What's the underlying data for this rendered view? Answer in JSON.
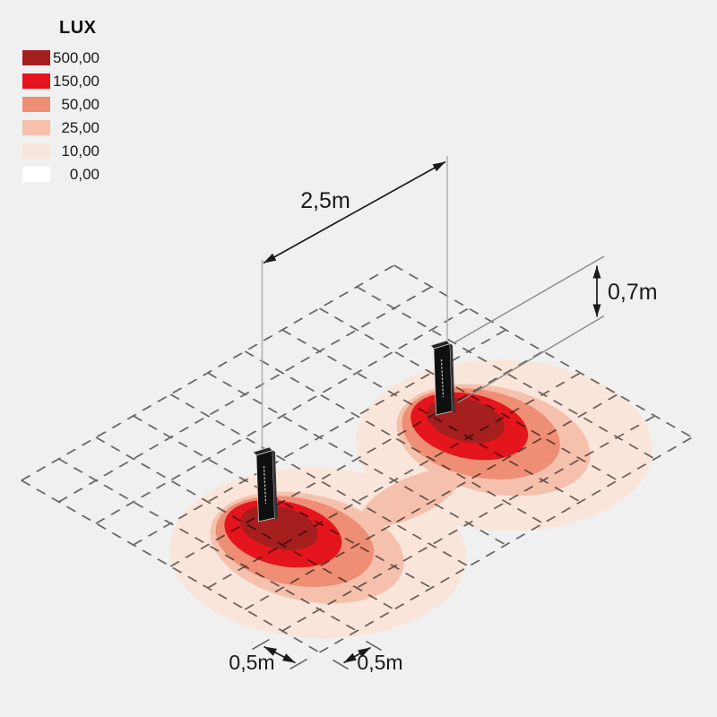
{
  "legend": {
    "title": "LUX",
    "items": [
      {
        "label": "500,00",
        "color": "#A51F1F"
      },
      {
        "label": "150,00",
        "color": "#E4151D"
      },
      {
        "label": "50,00",
        "color": "#EE8E74"
      },
      {
        "label": "25,00",
        "color": "#F5C1AD"
      },
      {
        "label": "10,00",
        "color": "#FAE5DB"
      },
      {
        "label": "0,00",
        "color": "#FFFFFF"
      }
    ]
  },
  "dimensions": {
    "fixture_spacing": "2,5m",
    "fixture_height": "0,7m",
    "grid_cell_depth": "0,5m",
    "grid_cell_width": "0,5m"
  },
  "colors": {
    "background": "#F0F0F0",
    "grid_line": "#4A4A4A",
    "lux_500": "#A51F1F",
    "lux_150": "#E4151D",
    "lux_50": "#EE8E74",
    "lux_25": "#F5C1AD",
    "lux_10": "#FAE5DB",
    "lux_0": "#FFFFFF",
    "dimension_line": "#1A1A1A",
    "fixture_body": "#0F0F10"
  }
}
